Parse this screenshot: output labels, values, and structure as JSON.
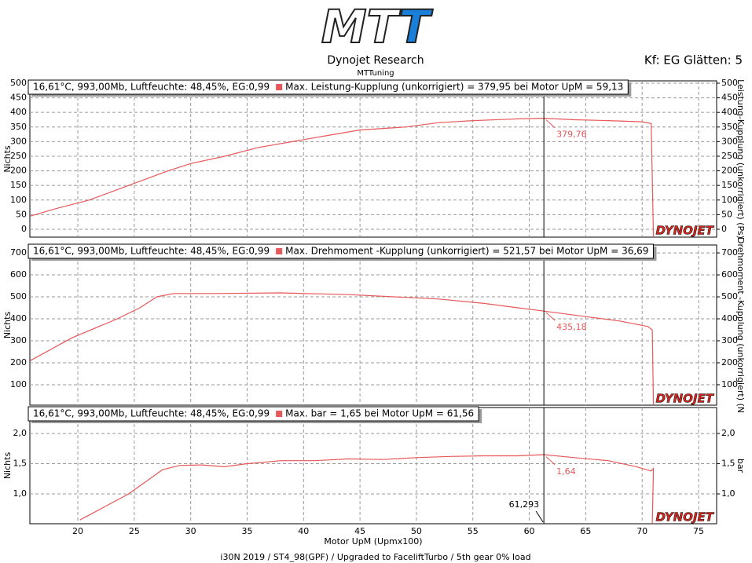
{
  "header": {
    "logo": [
      "MT",
      "T"
    ],
    "title": "Dynojet Research",
    "subtitle": "MTTuning",
    "settings": "Kf: EG Glätten: 5"
  },
  "brand": "DYNOJET",
  "x_label": "Motor UpM (Upmx100)",
  "footer": "i30N 2019 / ST4_98(GPF) / Upgraded to FaceliftTurbo / 5th gear 0% load",
  "cursor": {
    "value": 61.293,
    "label": "61,293"
  },
  "chart_data": [
    {
      "type": "line",
      "info": "16,61°C, 993,00Mb, Luftfeuchte: 48,45%, EG:0,99",
      "max_label": "Max. Leistung-Kupplung (unkorrigiert) = 379,95 bei Motor UpM = 59,13",
      "y_label": "Nichts",
      "y2_label": "Leistung-Kupplung (unkorrigiert) (Ps)",
      "annotation": {
        "value": 379.76,
        "label": "379,76"
      },
      "ylim": [
        -27,
        508
      ],
      "yticks": [
        0,
        50,
        100,
        150,
        200,
        250,
        300,
        350,
        400,
        450,
        500
      ],
      "y2lim": [
        -27,
        508
      ],
      "y2ticks": [
        0,
        50,
        100,
        150,
        200,
        250,
        300,
        350,
        400,
        450,
        500
      ],
      "series": [
        {
          "color": "#e8585a",
          "x": [
            15.8,
            18,
            21,
            24.5,
            28,
            30,
            33,
            36,
            39,
            42,
            45,
            49,
            52,
            55,
            59,
            61.3,
            64,
            67,
            70,
            70.8,
            71
          ],
          "values": [
            45,
            70,
            100,
            150,
            200,
            225,
            250,
            280,
            300,
            320,
            340,
            350,
            365,
            372,
            378,
            380,
            375,
            372,
            368,
            362,
            -27
          ]
        }
      ]
    },
    {
      "type": "line",
      "info": "16,61°C, 993,00Mb, Luftfeuchte: 48,45%, EG:0,99",
      "max_label": "Max. Drehmoment -Kupplung (unkorrigiert) = 521,57 bei Motor UpM = 36,69",
      "y_label": "Nichts",
      "y2_label": "Drehmoment -Kupplung (unkorrigiert) (N",
      "annotation": {
        "value": 435.18,
        "label": "435,18"
      },
      "ylim": [
        7,
        736
      ],
      "yticks": [
        100,
        200,
        300,
        400,
        500,
        600,
        700
      ],
      "y2lim": [
        7,
        736
      ],
      "y2ticks": [
        100,
        200,
        300,
        400,
        500,
        600,
        700
      ],
      "series": [
        {
          "color": "#e8585a",
          "x": [
            15.8,
            19.5,
            23.5,
            25.5,
            27,
            28.5,
            32,
            38,
            44,
            48,
            52,
            56,
            59,
            61.3,
            65,
            68,
            70.5,
            70.9,
            71
          ],
          "values": [
            210,
            314,
            400,
            450,
            500,
            515,
            515,
            518,
            510,
            500,
            490,
            470,
            450,
            435,
            410,
            390,
            365,
            350,
            7
          ]
        }
      ]
    },
    {
      "type": "line",
      "info": "16,61°C, 993,00Mb, Luftfeuchte: 48,45%, EG:0,99",
      "max_label": "Max. bar = 1,65 bei Motor UpM = 61,56",
      "y_label": "Nichts",
      "y2_label": "bar",
      "annotation": {
        "value": 1.64,
        "label": "1,64"
      },
      "xlim": [
        15.75,
        76.6
      ],
      "xticks": [
        20,
        25,
        30,
        35,
        40,
        45,
        50,
        55,
        60,
        65,
        70,
        75
      ],
      "ylim": [
        0.506,
        2.43
      ],
      "yticks": [
        {
          "value": 1,
          "label": "1,0"
        },
        {
          "value": 1.5,
          "label": "1,5"
        },
        {
          "value": 2,
          "label": "2,0"
        }
      ],
      "y2lim": [
        0.506,
        2.43
      ],
      "y2ticks": [
        {
          "value": 1,
          "label": "1,0"
        },
        {
          "value": 1.5,
          "label": "1,5"
        },
        {
          "value": 2,
          "label": "2,0"
        }
      ],
      "series": [
        {
          "color": "#e8585a",
          "x": [
            20.2,
            20.5,
            22.5,
            24.5,
            26,
            27.5,
            29,
            31,
            33,
            35,
            38,
            41,
            44,
            47,
            50,
            53,
            56,
            59,
            61.3,
            64,
            67,
            69.5,
            70.8,
            71,
            70.9
          ],
          "values": [
            0.57,
            0.6,
            0.8,
            1,
            1.2,
            1.4,
            1.47,
            1.48,
            1.45,
            1.5,
            1.55,
            1.55,
            1.58,
            1.57,
            1.6,
            1.62,
            1.63,
            1.63,
            1.65,
            1.6,
            1.55,
            1.45,
            1.38,
            1.42,
            0.506
          ]
        }
      ]
    }
  ]
}
